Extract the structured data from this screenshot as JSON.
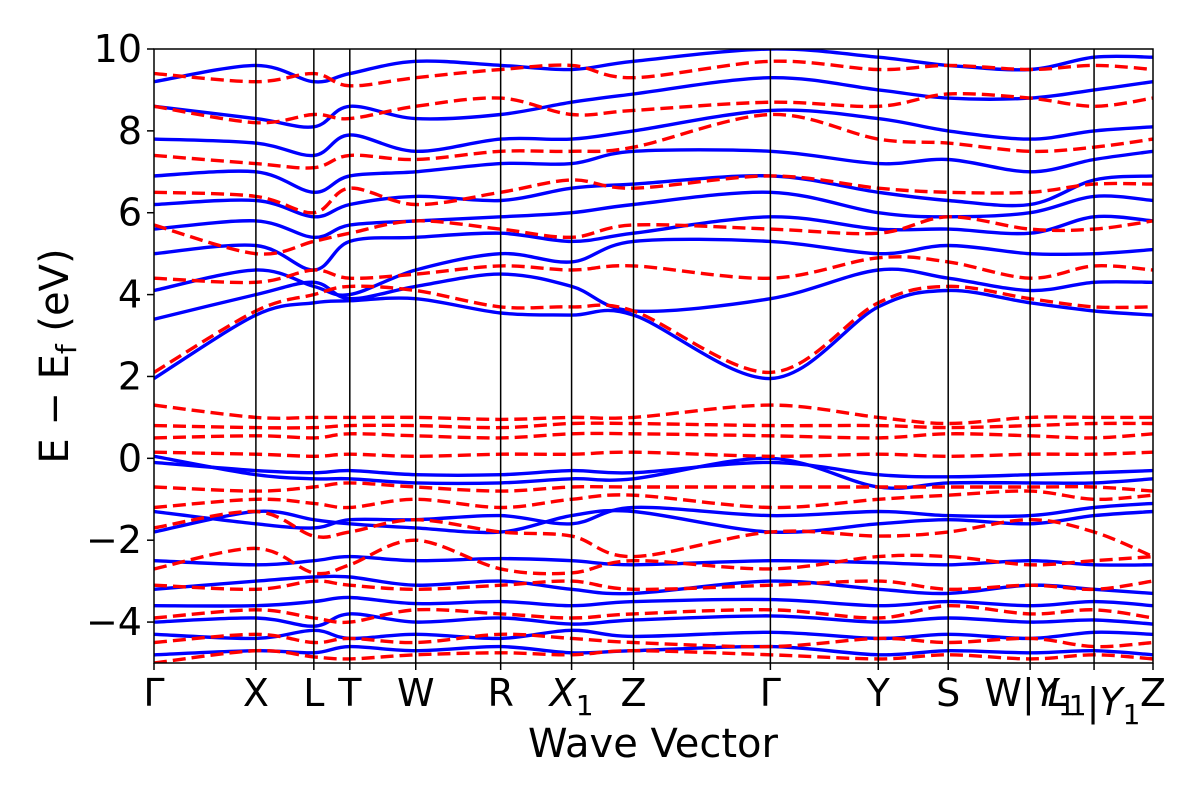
{
  "chart_data": {
    "type": "line",
    "title": "",
    "xlabel": "Wave Vector",
    "ylabel_main": "E − E",
    "ylabel_sub": "f",
    "ylabel_unit": " (eV)",
    "ylim": [
      -5,
      10
    ],
    "y_ticks": [
      -4,
      -2,
      0,
      2,
      4,
      6,
      8,
      10
    ],
    "y_tick_labels": [
      "−4",
      "−2",
      "0",
      "2",
      "4",
      "6",
      "8",
      "10"
    ],
    "grid": false,
    "legend": "none",
    "x_ticks": [
      0,
      1.02,
      1.6,
      1.96,
      2.62,
      3.47,
      4.18,
      4.8,
      6.17,
      7.25,
      7.95,
      8.77,
      9.41,
      10.0
    ],
    "x_tick_labels": [
      "Γ",
      "X",
      "L",
      "T",
      "W",
      "R",
      "X1",
      "Z",
      "Γ",
      "Y",
      "S",
      "W|Y1",
      "L1|Y1",
      "Z"
    ],
    "series": [
      {
        "style": "solid",
        "color": "#0000ff",
        "bands": [
          [
            -4.8,
            -4.7,
            -4.75,
            -4.6,
            -4.7,
            -4.6,
            -4.75,
            -4.7,
            -4.6,
            -4.8,
            -4.7,
            -4.75,
            -4.7,
            -4.8
          ],
          [
            -4.3,
            -4.4,
            -4.2,
            -4.4,
            -4.3,
            -4.4,
            -4.2,
            -4.35,
            -4.25,
            -4.4,
            -4.3,
            -4.4,
            -4.25,
            -4.3
          ],
          [
            -4.0,
            -3.9,
            -4.1,
            -3.8,
            -4.0,
            -3.9,
            -4.05,
            -3.95,
            -3.85,
            -4.0,
            -3.9,
            -4.0,
            -3.95,
            -4.05
          ],
          [
            -3.6,
            -3.6,
            -3.5,
            -3.4,
            -3.55,
            -3.5,
            -3.6,
            -3.5,
            -3.45,
            -3.6,
            -3.5,
            -3.6,
            -3.5,
            -3.6
          ],
          [
            -3.2,
            -3.0,
            -2.9,
            -2.9,
            -3.1,
            -3.0,
            -3.2,
            -3.3,
            -3.0,
            -3.2,
            -3.3,
            -3.1,
            -3.2,
            -3.3
          ],
          [
            -2.5,
            -2.6,
            -2.5,
            -2.4,
            -2.5,
            -2.45,
            -2.5,
            -2.6,
            -2.5,
            -2.55,
            -2.6,
            -2.5,
            -2.6,
            -2.6
          ],
          [
            -1.8,
            -1.3,
            -1.5,
            -1.6,
            -1.7,
            -1.8,
            -1.4,
            -1.3,
            -1.8,
            -1.6,
            -1.5,
            -1.6,
            -1.4,
            -1.3
          ],
          [
            -1.3,
            -1.6,
            -1.7,
            -1.5,
            -1.5,
            -1.4,
            -1.6,
            -1.2,
            -1.4,
            -1.3,
            -1.4,
            -1.4,
            -1.2,
            -1.1
          ],
          [
            -0.1,
            -0.3,
            -0.35,
            -0.3,
            -0.4,
            -0.4,
            -0.3,
            -0.35,
            -0.1,
            -0.4,
            -0.45,
            -0.4,
            -0.35,
            -0.3
          ],
          [
            0.05,
            -0.4,
            -0.5,
            -0.5,
            -0.6,
            -0.6,
            -0.5,
            -0.5,
            0.0,
            -0.7,
            -0.6,
            -0.6,
            -0.6,
            -0.5
          ],
          [
            1.95,
            3.5,
            3.8,
            3.85,
            3.9,
            3.55,
            3.5,
            3.5,
            1.95,
            3.7,
            4.1,
            3.8,
            3.6,
            3.5
          ],
          [
            3.4,
            4.0,
            4.3,
            3.9,
            4.2,
            4.5,
            4.2,
            3.6,
            3.9,
            4.6,
            4.4,
            4.1,
            4.3,
            4.3
          ],
          [
            4.1,
            4.6,
            4.2,
            4.0,
            4.6,
            5.0,
            4.8,
            5.3,
            5.3,
            5.0,
            5.2,
            5.0,
            5.0,
            5.1
          ],
          [
            5.0,
            5.2,
            4.6,
            5.3,
            5.4,
            5.5,
            5.3,
            5.5,
            5.9,
            5.6,
            5.6,
            5.5,
            5.9,
            5.8
          ],
          [
            5.6,
            5.8,
            5.4,
            5.7,
            5.8,
            5.9,
            6.0,
            6.2,
            6.5,
            6.0,
            5.9,
            6.0,
            6.4,
            6.3
          ],
          [
            6.2,
            6.3,
            5.9,
            6.2,
            6.4,
            6.3,
            6.6,
            6.7,
            6.9,
            6.5,
            6.3,
            6.2,
            6.8,
            6.9
          ],
          [
            6.9,
            7.0,
            6.5,
            6.9,
            7.0,
            7.2,
            7.2,
            7.5,
            7.5,
            7.2,
            7.3,
            7.0,
            7.3,
            7.5
          ],
          [
            7.8,
            7.7,
            7.4,
            7.9,
            7.5,
            7.8,
            7.8,
            8.0,
            8.5,
            8.3,
            8.0,
            7.8,
            8.0,
            8.1
          ],
          [
            8.6,
            8.3,
            8.1,
            8.6,
            8.3,
            8.4,
            8.7,
            8.9,
            9.3,
            9.0,
            8.8,
            8.8,
            9.0,
            9.2
          ],
          [
            9.2,
            9.6,
            9.2,
            9.4,
            9.7,
            9.6,
            9.5,
            9.7,
            10.0,
            9.8,
            9.6,
            9.5,
            9.8,
            9.8
          ]
        ]
      },
      {
        "style": "dashed",
        "color": "#ff0000",
        "bands": [
          [
            -5.0,
            -4.7,
            -4.85,
            -4.9,
            -4.8,
            -4.75,
            -4.8,
            -4.7,
            -4.8,
            -4.9,
            -4.8,
            -4.9,
            -4.8,
            -4.9
          ],
          [
            -4.5,
            -4.3,
            -4.5,
            -4.4,
            -4.5,
            -4.3,
            -4.4,
            -4.5,
            -4.6,
            -4.4,
            -4.5,
            -4.4,
            -4.6,
            -4.5
          ],
          [
            -3.9,
            -3.7,
            -3.9,
            -4.0,
            -3.7,
            -3.8,
            -3.9,
            -3.8,
            -3.7,
            -3.9,
            -3.6,
            -3.8,
            -3.7,
            -3.9
          ],
          [
            -3.1,
            -3.2,
            -3.0,
            -3.1,
            -3.2,
            -3.1,
            -3.0,
            -3.2,
            -3.1,
            -3.0,
            -3.2,
            -3.1,
            -3.2,
            -3.0
          ],
          [
            -2.7,
            -2.2,
            -2.8,
            -2.6,
            -2.0,
            -2.7,
            -2.8,
            -2.5,
            -2.7,
            -2.4,
            -2.4,
            -2.6,
            -2.5,
            -2.4
          ],
          [
            -1.7,
            -1.3,
            -1.9,
            -1.8,
            -1.5,
            -1.8,
            -1.9,
            -2.4,
            -1.8,
            -1.9,
            -1.8,
            -1.5,
            -1.8,
            -2.4
          ],
          [
            -1.2,
            -1.0,
            -1.1,
            -1.2,
            -1.0,
            -1.2,
            -1.0,
            -0.9,
            -1.2,
            -1.0,
            -0.9,
            -0.8,
            -1.0,
            -0.9
          ],
          [
            -0.7,
            -0.8,
            -0.7,
            -0.6,
            -0.7,
            -0.8,
            -0.7,
            -0.7,
            -0.7,
            -0.7,
            -0.7,
            -0.7,
            -0.7,
            -0.8
          ],
          [
            0.15,
            0.1,
            0.05,
            0.1,
            0.05,
            0.1,
            0.1,
            0.15,
            0.05,
            0.1,
            0.05,
            0.1,
            0.1,
            0.15
          ],
          [
            0.5,
            0.55,
            0.5,
            0.6,
            0.55,
            0.5,
            0.6,
            0.6,
            0.55,
            0.5,
            0.6,
            0.55,
            0.5,
            0.6
          ],
          [
            0.8,
            0.75,
            0.75,
            0.8,
            0.8,
            0.75,
            0.85,
            0.85,
            0.8,
            0.8,
            0.75,
            0.8,
            0.85,
            0.85
          ],
          [
            1.3,
            1.0,
            1.0,
            1.0,
            1.0,
            0.95,
            1.0,
            1.0,
            1.3,
            1.0,
            0.85,
            1.0,
            1.0,
            1.0
          ],
          [
            2.1,
            3.6,
            4.0,
            4.2,
            4.1,
            3.7,
            3.7,
            3.6,
            2.1,
            3.8,
            4.2,
            3.9,
            3.7,
            3.7
          ],
          [
            4.4,
            4.3,
            4.6,
            4.4,
            4.5,
            4.7,
            4.6,
            4.7,
            4.4,
            4.9,
            4.8,
            4.4,
            4.7,
            4.6
          ],
          [
            5.7,
            5.0,
            5.3,
            5.5,
            5.8,
            5.6,
            5.4,
            5.7,
            5.6,
            5.5,
            5.9,
            5.6,
            5.6,
            5.8
          ],
          [
            6.5,
            6.4,
            6.0,
            6.6,
            6.2,
            6.5,
            6.8,
            6.6,
            6.9,
            6.6,
            6.5,
            6.5,
            6.7,
            6.7
          ],
          [
            7.4,
            7.2,
            7.1,
            7.4,
            7.3,
            7.5,
            7.5,
            7.6,
            8.4,
            7.8,
            7.7,
            7.5,
            7.6,
            7.8
          ],
          [
            8.6,
            8.2,
            8.4,
            8.3,
            8.6,
            8.8,
            8.4,
            8.5,
            8.7,
            8.6,
            8.9,
            8.8,
            8.6,
            8.8
          ],
          [
            9.4,
            9.2,
            9.4,
            9.1,
            9.3,
            9.5,
            9.6,
            9.3,
            9.7,
            9.5,
            9.6,
            9.5,
            9.6,
            9.5
          ]
        ]
      }
    ]
  }
}
